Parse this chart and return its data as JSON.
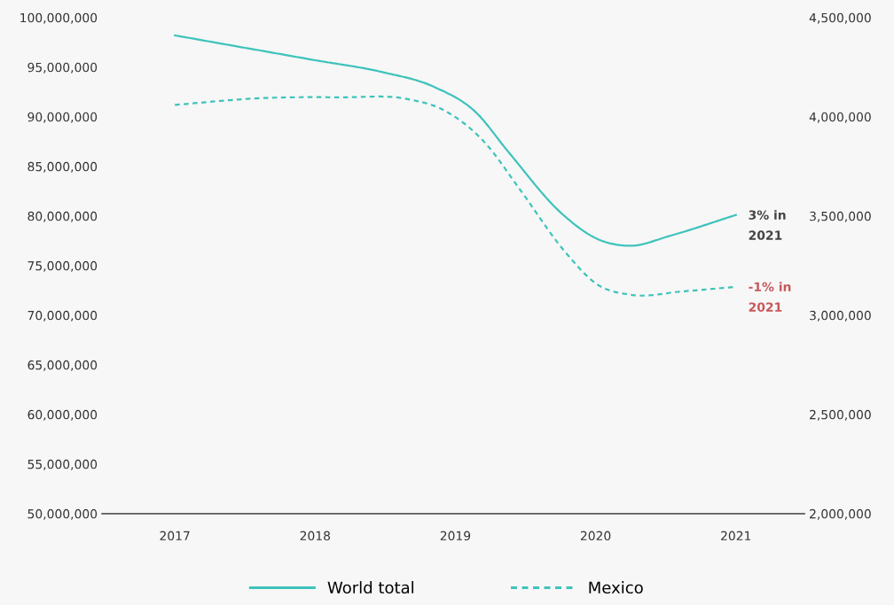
{
  "chart_data": {
    "type": "line",
    "series": [
      {
        "name": "World total",
        "color": "#3ec3bb",
        "line_style": "solid",
        "x": [
          2017,
          2018,
          2018.48,
          2018.85,
          2019.15,
          2019.37,
          2019.77,
          2020.01,
          2020.25,
          2020.53,
          2021
        ],
        "values": [
          98200000,
          95700000,
          94500000,
          93000000,
          90400000,
          86600000,
          80100000,
          77700000,
          77000000,
          78000000,
          80100000
        ]
      },
      {
        "name": "Mexico",
        "color": "#3ec3bb",
        "line_style": "dashed",
        "axis": "y2",
        "x": [
          2017,
          2017.62,
          2018.18,
          2018.66,
          2018.91,
          2019.21,
          2019.46,
          2019.77,
          2020.01,
          2020.25,
          2020.62,
          2021
        ],
        "values": [
          4060000,
          4094000,
          4098000,
          4089000,
          4036000,
          3870000,
          3634000,
          3330000,
          3156000,
          3103000,
          3120000,
          3143000
        ]
      }
    ],
    "annotations": [
      "3% in\n2021",
      "-1% in\n2021"
    ],
    "xlim": [
      2016.48,
      2021.49
    ],
    "xticks": [
      2017,
      2018,
      2019,
      2020,
      2021
    ],
    "ylim": [
      50000000,
      100000000
    ],
    "yticks": [
      {
        "value": 50000000,
        "label": "50,000,000"
      },
      {
        "value": 55000000,
        "label": "55,000,000"
      },
      {
        "value": 60000000,
        "label": "60,000,000"
      },
      {
        "value": 65000000,
        "label": "65,000,000"
      },
      {
        "value": 70000000,
        "label": "70,000,000"
      },
      {
        "value": 75000000,
        "label": "75,000,000"
      },
      {
        "value": 80000000,
        "label": "80,000,000"
      },
      {
        "value": 85000000,
        "label": "85,000,000"
      },
      {
        "value": 90000000,
        "label": "90,000,000"
      },
      {
        "value": 95000000,
        "label": "95,000,000"
      },
      {
        "value": 100000000,
        "label": "100,000,000"
      }
    ],
    "y2lim": [
      2000000,
      4500000
    ],
    "y2ticks": [
      {
        "value": 2000000,
        "label": "2,000,000"
      },
      {
        "value": 2500000,
        "label": "2,500,000"
      },
      {
        "value": 3000000,
        "label": "3,000,000"
      },
      {
        "value": 3500000,
        "label": "3,500,000"
      },
      {
        "value": 4000000,
        "label": "4,000,000"
      },
      {
        "value": 4500000,
        "label": "4,500,000"
      }
    ],
    "grid": false,
    "legend": "bottom"
  }
}
